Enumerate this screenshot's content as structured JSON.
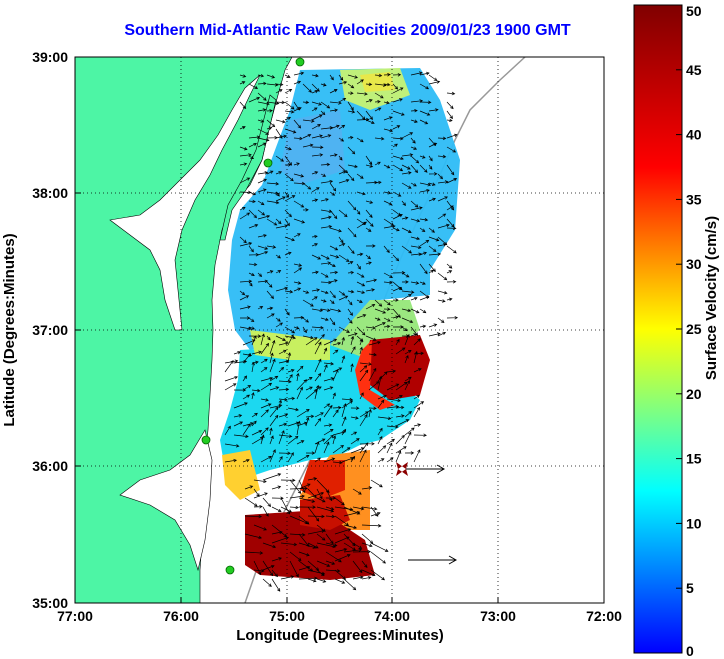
{
  "title": "Southern Mid-Atlantic Raw Velocities 2009/01/23 1900 GMT",
  "map": {
    "xlabel": "Longitude (Degrees:Minutes)",
    "ylabel": "Latitude (Degrees:Minutes)",
    "x_ticks": [
      "77:00",
      "76:00",
      "75:00",
      "74:00",
      "73:00",
      "72:00"
    ],
    "y_ticks": [
      "39:00",
      "38:00",
      "37:00",
      "36:00",
      "35:00"
    ],
    "land_color": "#4df5a5",
    "grid": "dotted"
  },
  "colorbar": {
    "label": "Surface Velocity (cm/s)",
    "ticks": [
      "50",
      "45",
      "40",
      "35",
      "30",
      "25",
      "20",
      "15",
      "10",
      "5",
      "0"
    ],
    "range": [
      0,
      50
    ],
    "colormap": "jet"
  },
  "legend_marker": {
    "icon": "bowtie-marker",
    "color": "#8b0000"
  }
}
